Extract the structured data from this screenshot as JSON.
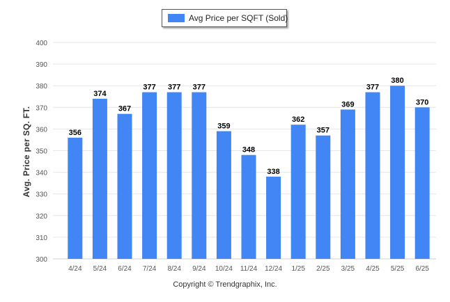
{
  "chart_data": {
    "type": "bar",
    "categories": [
      "4/24",
      "5/24",
      "6/24",
      "7/24",
      "8/24",
      "9/24",
      "10/24",
      "11/24",
      "12/24",
      "1/25",
      "2/25",
      "3/25",
      "4/25",
      "5/25",
      "6/25"
    ],
    "series": [
      {
        "name": "Avg Price per SQFT (Sold)",
        "values": [
          356,
          374,
          367,
          377,
          377,
          377,
          359,
          348,
          338,
          362,
          357,
          369,
          377,
          380,
          370
        ]
      }
    ],
    "title": "",
    "xlabel": "",
    "ylabel": "Avg. Price per SQ. FT.",
    "ylim": [
      300,
      400
    ],
    "yticks": [
      300,
      310,
      320,
      330,
      340,
      350,
      360,
      370,
      380,
      390,
      400
    ],
    "grid": true,
    "legend": "top-center",
    "data_labels": true,
    "colors": {
      "bar": "#4285f4",
      "grid": "#e6e6e6",
      "axis_text": "#555555",
      "label_text": "#000000"
    }
  },
  "legend": {
    "label": "Avg Price per SQFT (Sold)"
  },
  "footer": {
    "credit": "Copyright © Trendgraphix, Inc."
  }
}
